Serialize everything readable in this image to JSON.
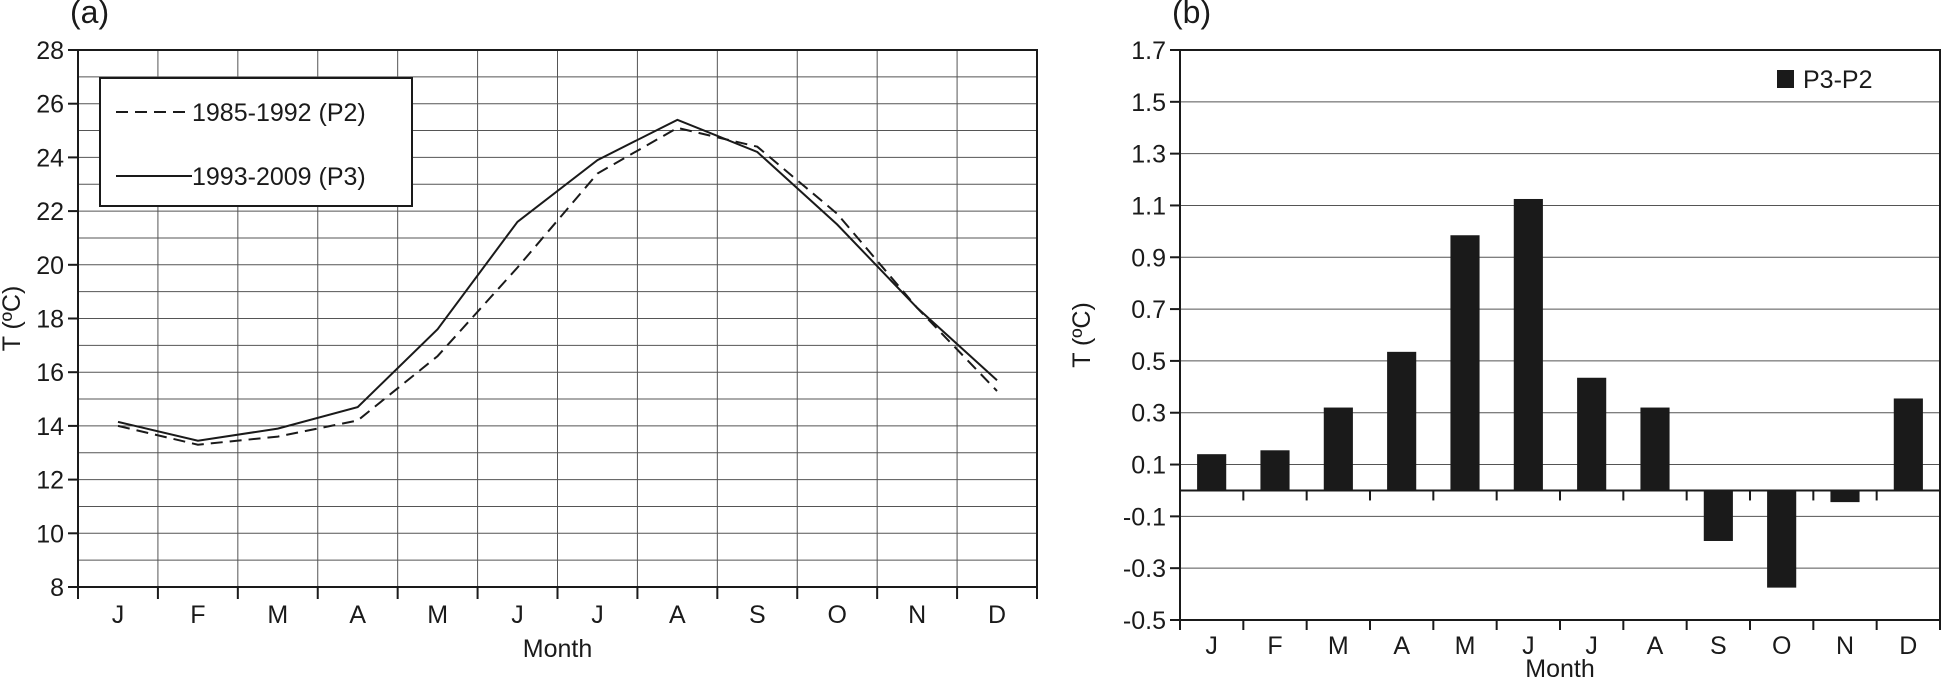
{
  "chart_data": [
    {
      "panel_label": "(a)",
      "type": "line",
      "categories": [
        "J",
        "F",
        "M",
        "A",
        "M",
        "J",
        "J",
        "A",
        "S",
        "O",
        "N",
        "D"
      ],
      "series": [
        {
          "name": "1985-1992 (P2)",
          "style": "dashed",
          "values": [
            14.0,
            13.3,
            13.6,
            14.2,
            16.6,
            19.9,
            23.4,
            25.1,
            24.4,
            21.9,
            18.4,
            15.3
          ]
        },
        {
          "name": "1993-2009 (P3)",
          "style": "solid",
          "values": [
            14.15,
            13.45,
            13.9,
            14.7,
            17.6,
            21.6,
            23.9,
            25.4,
            24.2,
            21.5,
            18.4,
            15.7
          ]
        }
      ],
      "title": "",
      "xlabel": "Month",
      "ylabel": "T (ºC)",
      "ylim": [
        8,
        28
      ],
      "yticks": [
        "8",
        "10",
        "12",
        "14",
        "16",
        "18",
        "20",
        "22",
        "24",
        "26",
        "28"
      ],
      "grid": true,
      "legend_position": "top-left"
    },
    {
      "panel_label": "(b)",
      "type": "bar",
      "categories": [
        "J",
        "F",
        "M",
        "A",
        "M",
        "J",
        "J",
        "A",
        "S",
        "O",
        "N",
        "D"
      ],
      "series": [
        {
          "name": "P3-P2",
          "values": [
            0.14,
            0.155,
            0.32,
            0.535,
            0.985,
            1.125,
            0.435,
            0.32,
            -0.195,
            -0.375,
            -0.045,
            0.355
          ]
        }
      ],
      "title": "",
      "xlabel": "Month",
      "ylabel": "T (ºC)",
      "ylim": [
        -0.5,
        1.7
      ],
      "yticks": [
        "-0.5",
        "-0.3",
        "-0.1",
        "0.1",
        "0.3",
        "0.5",
        "0.7",
        "0.9",
        "1.1",
        "1.3",
        "1.5",
        "1.7"
      ],
      "grid": true,
      "legend_position": "top-right"
    }
  ],
  "colors": {
    "ink": "#1a1a1a",
    "grid": "#555555",
    "bar": "#1a1a1a",
    "background": "#ffffff"
  }
}
